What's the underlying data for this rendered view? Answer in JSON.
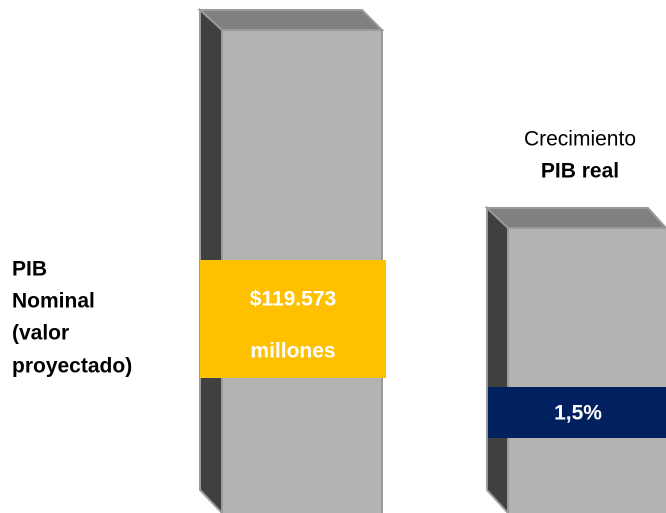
{
  "nominal_label": {
    "lines": [
      "PIB",
      "Nominal",
      "(valor",
      "proyectado)"
    ]
  },
  "growth_label": {
    "line1": "Crecimiento",
    "line2": "PIB real"
  },
  "nominal_box": {
    "lines": [
      "$119.573",
      "millones"
    ]
  },
  "growth_box": {
    "text": "1,5%"
  }
}
